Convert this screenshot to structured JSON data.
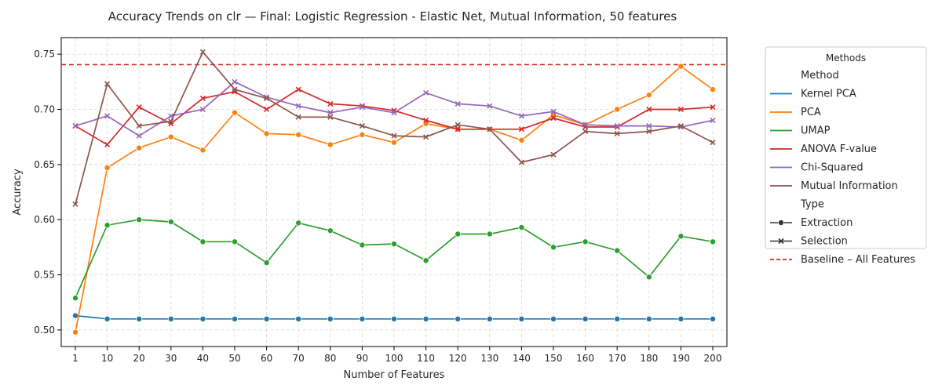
{
  "chart_data": {
    "type": "line",
    "title": "Accuracy Trends on clr — Final: Logistic Regression - Elastic Net, Mutual Information, 50 features",
    "xlabel": "Number of Features",
    "ylabel": "Accuracy",
    "categories": [
      "1",
      "10",
      "20",
      "30",
      "40",
      "50",
      "60",
      "70",
      "80",
      "90",
      "100",
      "110",
      "120",
      "130",
      "140",
      "150",
      "160",
      "170",
      "180",
      "190",
      "200"
    ],
    "ylim": [
      0.485,
      0.765
    ],
    "yticks": [
      "0.50",
      "0.55",
      "0.60",
      "0.65",
      "0.70",
      "0.75"
    ],
    "grid": true,
    "legend": {
      "title": "Methods",
      "placement": "outside-right",
      "method_header": "Method",
      "type_header": "Type",
      "type_entries": [
        {
          "name": "Extraction",
          "marker": "circle"
        },
        {
          "name": "Selection",
          "marker": "x"
        }
      ],
      "baseline_label": "Baseline – All Features"
    },
    "baseline": {
      "value": 0.7405,
      "color": "#d62728",
      "style": "dashed"
    },
    "series": [
      {
        "name": "Kernel PCA",
        "type": "Extraction",
        "marker": "circle",
        "color": "#1f77b4",
        "values": [
          0.513,
          0.51,
          0.51,
          0.51,
          0.51,
          0.51,
          0.51,
          0.51,
          0.51,
          0.51,
          0.51,
          0.51,
          0.51,
          0.51,
          0.51,
          0.51,
          0.51,
          0.51,
          0.51,
          0.51,
          0.51
        ]
      },
      {
        "name": "PCA",
        "type": "Extraction",
        "marker": "circle",
        "color": "#ff7f0e",
        "values": [
          0.498,
          0.647,
          0.665,
          0.675,
          0.663,
          0.697,
          0.678,
          0.677,
          0.668,
          0.677,
          0.67,
          0.687,
          0.682,
          0.682,
          0.672,
          0.695,
          0.686,
          0.7,
          0.713,
          0.739,
          0.718
        ]
      },
      {
        "name": "UMAP",
        "type": "Extraction",
        "marker": "circle",
        "color": "#2ca02c",
        "values": [
          0.529,
          0.595,
          0.6,
          0.598,
          0.58,
          0.58,
          0.561,
          0.597,
          0.59,
          0.577,
          0.578,
          0.563,
          0.587,
          0.587,
          0.593,
          0.575,
          0.58,
          0.572,
          0.548,
          0.585,
          0.58
        ]
      },
      {
        "name": "ANOVA F-value",
        "type": "Selection",
        "marker": "x",
        "color": "#d62728",
        "values": [
          0.685,
          0.668,
          0.702,
          0.687,
          0.71,
          0.716,
          0.7,
          0.718,
          0.705,
          0.703,
          0.699,
          0.69,
          0.682,
          0.682,
          0.682,
          0.692,
          0.684,
          0.684,
          0.7,
          0.7,
          0.702
        ]
      },
      {
        "name": "Chi-Squared",
        "type": "Selection",
        "marker": "x",
        "color": "#9467bd",
        "values": [
          0.685,
          0.694,
          0.676,
          0.694,
          0.7,
          0.725,
          0.711,
          0.703,
          0.697,
          0.702,
          0.697,
          0.715,
          0.705,
          0.703,
          0.694,
          0.698,
          0.686,
          0.685,
          0.685,
          0.684,
          0.69
        ]
      },
      {
        "name": "Mutual Information",
        "type": "Selection",
        "marker": "x",
        "color": "#8c564b",
        "values": [
          0.614,
          0.723,
          0.685,
          0.689,
          0.752,
          0.718,
          0.71,
          0.693,
          0.693,
          0.685,
          0.676,
          0.675,
          0.686,
          0.682,
          0.652,
          0.659,
          0.68,
          0.678,
          0.68,
          0.685,
          0.67
        ]
      }
    ]
  }
}
